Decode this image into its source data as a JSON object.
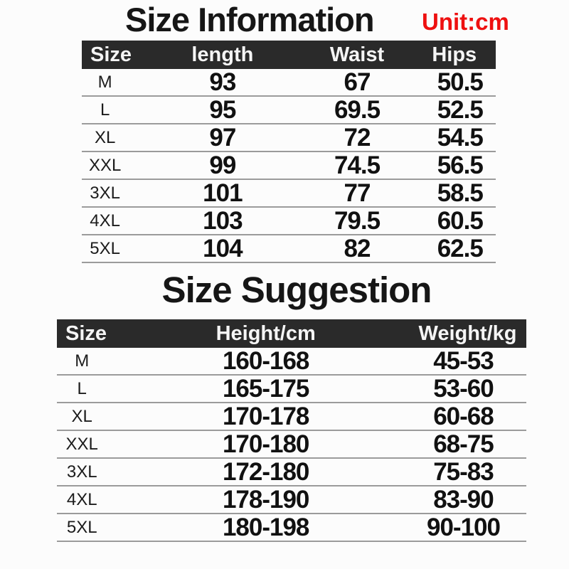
{
  "colors": {
    "accent_red": "#ee1010",
    "header_bar_bg": "#2a2a2a",
    "header_bar_text": "#f5f5f5",
    "divider_line": "#9b9b9b",
    "text": "#161616",
    "background": "#fcfcfc"
  },
  "chart_data": [
    {
      "type": "table",
      "title": "Size Information",
      "unit_label": "Unit:cm",
      "columns": [
        "Size",
        "length",
        "Waist",
        "Hips"
      ],
      "rows": [
        [
          "M",
          "93",
          "67",
          "50.5"
        ],
        [
          "L",
          "95",
          "69.5",
          "52.5"
        ],
        [
          "XL",
          "97",
          "72",
          "54.5"
        ],
        [
          "XXL",
          "99",
          "74.5",
          "56.5"
        ],
        [
          "3XL",
          "101",
          "77",
          "58.5"
        ],
        [
          "4XL",
          "103",
          "79.5",
          "60.5"
        ],
        [
          "5XL",
          "104",
          "82",
          "62.5"
        ]
      ]
    },
    {
      "type": "table",
      "title": "Size Suggestion",
      "columns": [
        "Size",
        "Height/cm",
        "Weight/kg"
      ],
      "rows": [
        [
          "M",
          "160-168",
          "45-53"
        ],
        [
          "L",
          "165-175",
          "53-60"
        ],
        [
          "XL",
          "170-178",
          "60-68"
        ],
        [
          "XXL",
          "170-180",
          "68-75"
        ],
        [
          "3XL",
          "172-180",
          "75-83"
        ],
        [
          "4XL",
          "178-190",
          "83-90"
        ],
        [
          "5XL",
          "180-198",
          "90-100"
        ]
      ]
    }
  ]
}
